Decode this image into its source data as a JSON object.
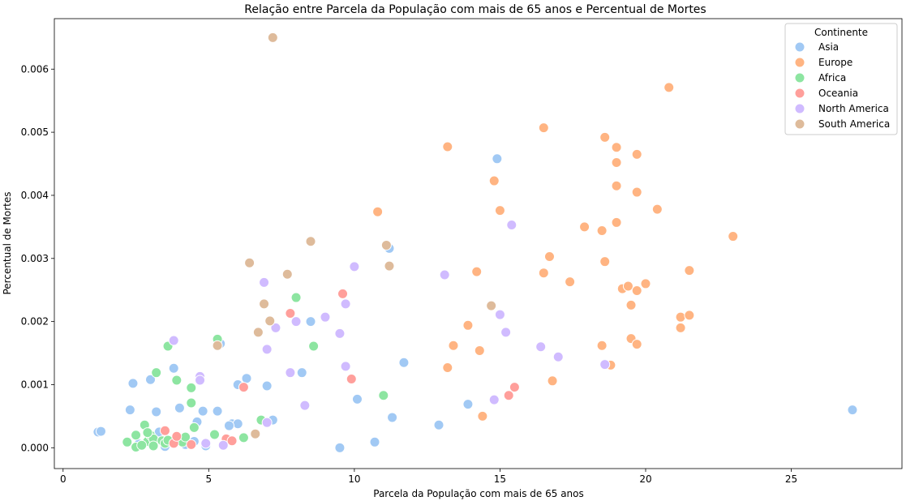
{
  "chart_data": {
    "type": "scatter",
    "title": "Relação entre Parcela da População com mais de 65 anos e Percentual de Mortes",
    "xlabel": "Parcela da População com mais de 65 anos",
    "ylabel": "Percentual de Mortes",
    "xlim": [
      -0.3,
      28.8
    ],
    "ylim": [
      -0.00033,
      0.0068
    ],
    "xticks": [
      0,
      5,
      10,
      15,
      20,
      25
    ],
    "xtick_labels": [
      "0",
      "5",
      "10",
      "15",
      "20",
      "25"
    ],
    "yticks": [
      0.0,
      0.001,
      0.002,
      0.003,
      0.004,
      0.005,
      0.006
    ],
    "ytick_labels": [
      "0.000",
      "0.001",
      "0.002",
      "0.003",
      "0.004",
      "0.005",
      "0.006"
    ],
    "grid": false,
    "legend": {
      "title": "Continente",
      "placement": "top-right"
    },
    "series": [
      {
        "name": "Asia",
        "color": "#a1c9f4",
        "points": [
          [
            1.2,
            0.00025
          ],
          [
            1.3,
            0.00026
          ],
          [
            2.4,
            0.00102
          ],
          [
            2.3,
            0.0006
          ],
          [
            3.0,
            0.00108
          ],
          [
            3.2,
            0.00057
          ],
          [
            3.8,
            0.00126
          ],
          [
            4.0,
            0.00063
          ],
          [
            4.8,
            0.00058
          ],
          [
            5.3,
            0.00058
          ],
          [
            5.4,
            0.00165
          ],
          [
            6.0,
            0.001
          ],
          [
            6.3,
            0.0011
          ],
          [
            7.0,
            0.00098
          ],
          [
            7.2,
            0.00044
          ],
          [
            8.2,
            0.00119
          ],
          [
            8.5,
            0.002
          ],
          [
            5.8,
            0.00038
          ],
          [
            6.0,
            0.00038
          ],
          [
            9.5,
            0.0
          ],
          [
            10.1,
            0.00077
          ],
          [
            10.7,
            9e-05
          ],
          [
            11.3,
            0.00048
          ],
          [
            11.7,
            0.00135
          ],
          [
            11.2,
            0.00316
          ],
          [
            12.9,
            0.00036
          ],
          [
            13.9,
            0.00069
          ],
          [
            14.9,
            0.00458
          ],
          [
            18.6,
            0.00133
          ],
          [
            27.1,
            0.0006
          ],
          [
            3.3,
            0.00025
          ],
          [
            4.6,
            0.00041
          ],
          [
            4.2,
            5e-05
          ],
          [
            4.9,
            3e-05
          ],
          [
            3.5,
            2e-05
          ],
          [
            2.6,
            6e-05
          ],
          [
            3.1,
            0.00012
          ],
          [
            4.5,
            0.0001
          ],
          [
            5.7,
            0.00035
          ]
        ]
      },
      {
        "name": "Europe",
        "color": "#ffb482",
        "points": [
          [
            10.8,
            0.00374
          ],
          [
            13.2,
            0.00477
          ],
          [
            13.2,
            0.00127
          ],
          [
            13.4,
            0.00162
          ],
          [
            13.9,
            0.00194
          ],
          [
            14.2,
            0.00279
          ],
          [
            14.3,
            0.00154
          ],
          [
            14.4,
            0.0005
          ],
          [
            14.8,
            0.00423
          ],
          [
            15.0,
            0.00376
          ],
          [
            16.5,
            0.00507
          ],
          [
            16.5,
            0.00277
          ],
          [
            16.7,
            0.00303
          ],
          [
            16.8,
            0.00106
          ],
          [
            17.4,
            0.00263
          ],
          [
            17.9,
            0.0035
          ],
          [
            18.5,
            0.00344
          ],
          [
            18.5,
            0.00162
          ],
          [
            18.6,
            0.00492
          ],
          [
            18.6,
            0.00295
          ],
          [
            18.8,
            0.00131
          ],
          [
            19.0,
            0.00476
          ],
          [
            19.0,
            0.00415
          ],
          [
            19.0,
            0.00357
          ],
          [
            19.2,
            0.00252
          ],
          [
            19.4,
            0.00256
          ],
          [
            19.5,
            0.00226
          ],
          [
            19.5,
            0.00173
          ],
          [
            19.7,
            0.00465
          ],
          [
            19.7,
            0.00405
          ],
          [
            19.7,
            0.00249
          ],
          [
            19.7,
            0.00164
          ],
          [
            20.0,
            0.0026
          ],
          [
            20.4,
            0.00378
          ],
          [
            20.8,
            0.00571
          ],
          [
            21.2,
            0.00207
          ],
          [
            21.5,
            0.0021
          ],
          [
            21.5,
            0.00281
          ],
          [
            23.0,
            0.00335
          ],
          [
            19.0,
            0.00452
          ],
          [
            21.2,
            0.0019
          ]
        ]
      },
      {
        "name": "Africa",
        "color": "#8de5a1",
        "points": [
          [
            2.2,
            9e-05
          ],
          [
            2.5,
            0.0002
          ],
          [
            2.5,
            1e-05
          ],
          [
            2.8,
            0.00036
          ],
          [
            2.9,
            0.0001
          ],
          [
            3.0,
            0.0002
          ],
          [
            3.1,
            0.00014
          ],
          [
            3.1,
            3e-05
          ],
          [
            3.2,
            0.00119
          ],
          [
            3.4,
            0.00011
          ],
          [
            3.5,
            7e-05
          ],
          [
            3.6,
            0.00161
          ],
          [
            3.9,
            0.00107
          ],
          [
            4.1,
            9e-05
          ],
          [
            4.2,
            0.00017
          ],
          [
            4.4,
            0.00095
          ],
          [
            4.4,
            0.00071
          ],
          [
            4.5,
            0.00032
          ],
          [
            5.2,
            0.00021
          ],
          [
            5.3,
            0.00172
          ],
          [
            6.2,
            0.00016
          ],
          [
            6.8,
            0.00044
          ],
          [
            8.0,
            0.00238
          ],
          [
            8.6,
            0.00161
          ],
          [
            11.0,
            0.00083
          ],
          [
            2.7,
            4e-05
          ],
          [
            3.6,
            0.00012
          ],
          [
            2.9,
            0.00024
          ]
        ]
      },
      {
        "name": "Oceania",
        "color": "#ff9f9b",
        "points": [
          [
            3.5,
            0.00027
          ],
          [
            3.8,
            7e-05
          ],
          [
            3.9,
            0.00018
          ],
          [
            4.4,
            5e-05
          ],
          [
            5.6,
            0.00014
          ],
          [
            5.8,
            0.00011
          ],
          [
            6.2,
            0.00096
          ],
          [
            7.8,
            0.00213
          ],
          [
            9.6,
            0.00244
          ],
          [
            9.9,
            0.00109
          ],
          [
            15.3,
            0.00083
          ],
          [
            15.5,
            0.00096
          ]
        ]
      },
      {
        "name": "North America",
        "color": "#d0bbff",
        "points": [
          [
            3.8,
            0.0017
          ],
          [
            4.7,
            0.00113
          ],
          [
            4.7,
            0.00107
          ],
          [
            4.9,
            7e-05
          ],
          [
            5.5,
            4e-05
          ],
          [
            6.9,
            0.00262
          ],
          [
            7.0,
            0.00156
          ],
          [
            7.0,
            0.0004
          ],
          [
            7.3,
            0.0019
          ],
          [
            7.8,
            0.00119
          ],
          [
            8.0,
            0.002
          ],
          [
            8.3,
            0.00067
          ],
          [
            9.0,
            0.00207
          ],
          [
            9.5,
            0.00181
          ],
          [
            9.7,
            0.00129
          ],
          [
            9.7,
            0.00228
          ],
          [
            10.0,
            0.00287
          ],
          [
            13.1,
            0.00274
          ],
          [
            14.8,
            0.00076
          ],
          [
            15.0,
            0.00211
          ],
          [
            15.2,
            0.00183
          ],
          [
            15.4,
            0.00353
          ],
          [
            16.4,
            0.0016
          ],
          [
            17.0,
            0.00144
          ],
          [
            18.6,
            0.00132
          ]
        ]
      },
      {
        "name": "South America",
        "color": "#debb9b",
        "points": [
          [
            5.3,
            0.00162
          ],
          [
            6.4,
            0.00293
          ],
          [
            6.6,
            0.00022
          ],
          [
            6.7,
            0.00183
          ],
          [
            6.9,
            0.00228
          ],
          [
            7.1,
            0.00201
          ],
          [
            7.2,
            0.0065
          ],
          [
            7.7,
            0.00275
          ],
          [
            8.5,
            0.00327
          ],
          [
            11.1,
            0.00321
          ],
          [
            11.2,
            0.00288
          ],
          [
            14.7,
            0.00225
          ]
        ]
      }
    ]
  }
}
